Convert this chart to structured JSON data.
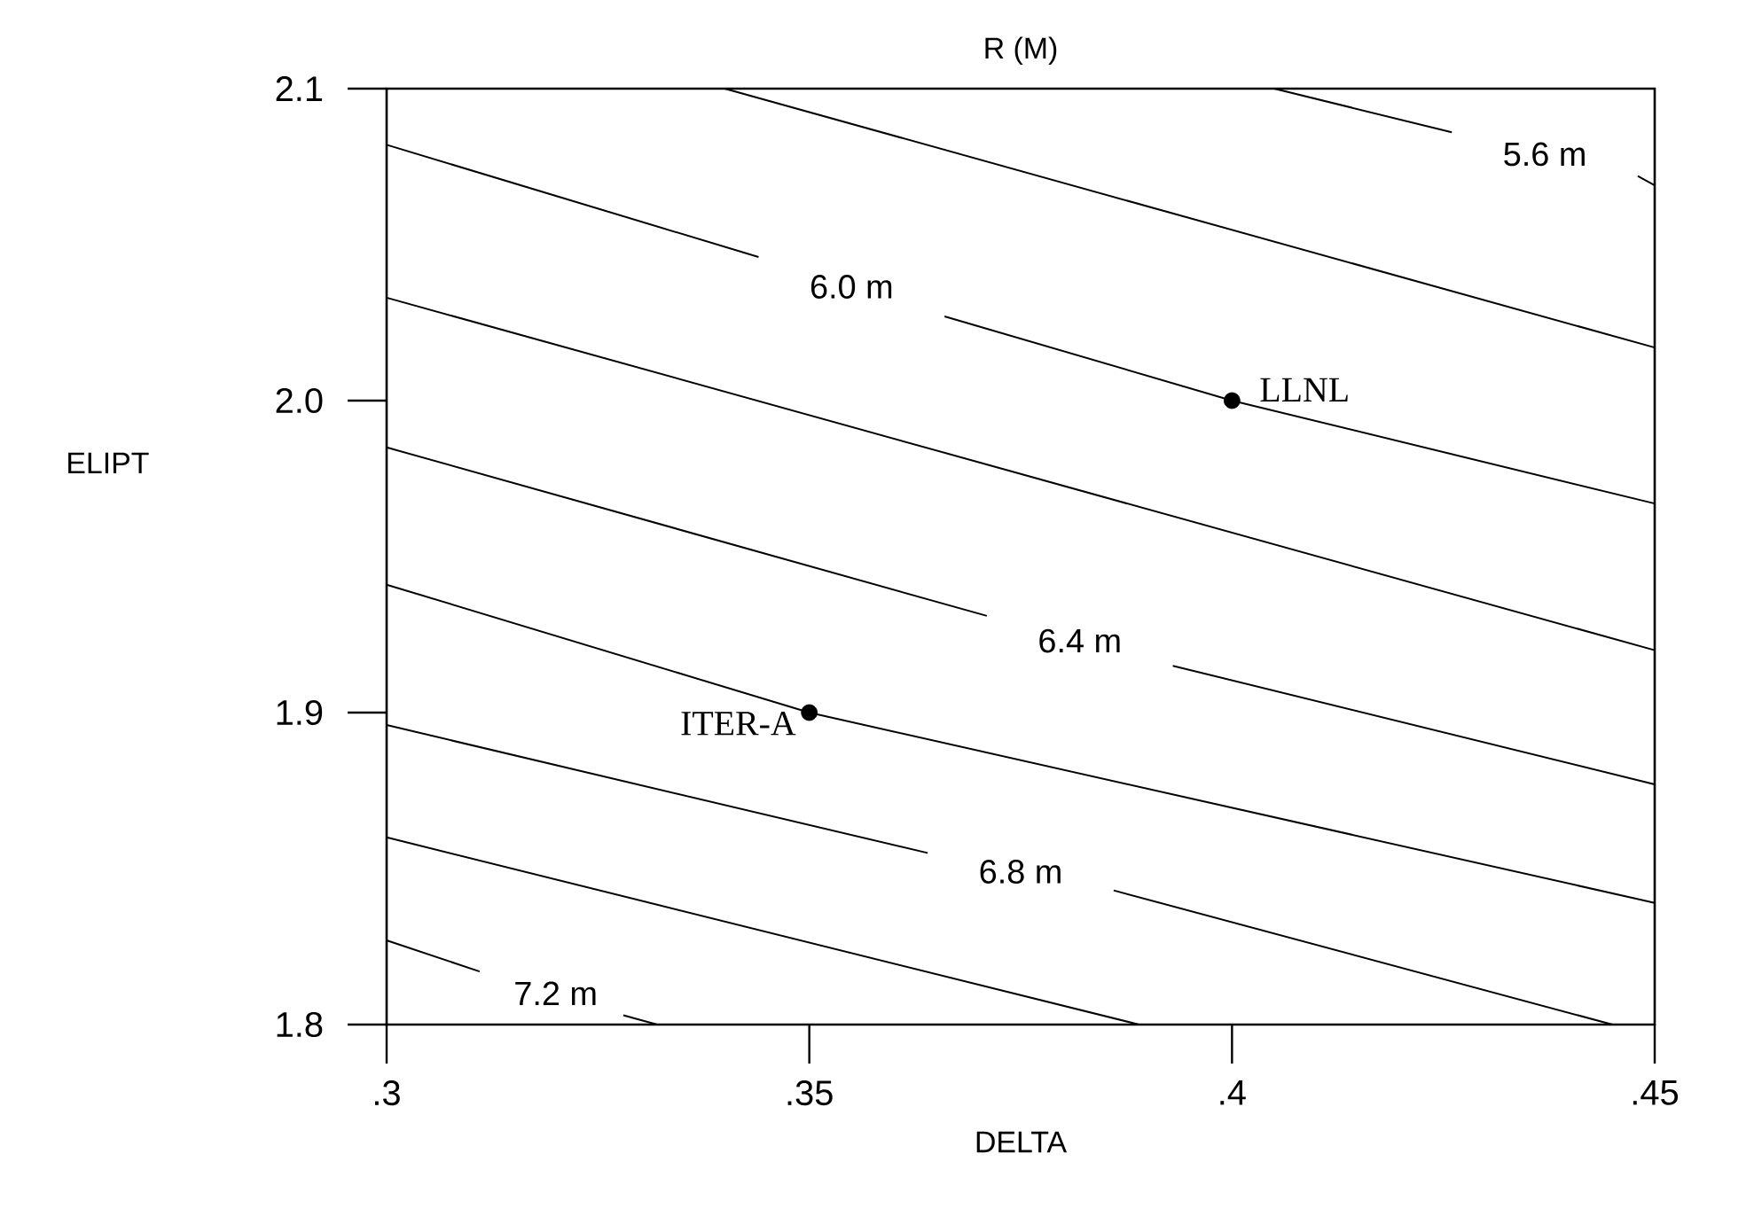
{
  "chart_data": {
    "type": "line",
    "title": "R (M)",
    "xlabel": "DELTA",
    "ylabel": "ELIPT",
    "xlim": [
      0.3,
      0.45
    ],
    "ylim": [
      1.8,
      2.1
    ],
    "xticks": [
      {
        "value": 0.3,
        "label": ".3"
      },
      {
        "value": 0.35,
        "label": ".35"
      },
      {
        "value": 0.4,
        "label": ".4"
      },
      {
        "value": 0.45,
        "label": ".45"
      }
    ],
    "yticks": [
      1.8,
      1.9,
      {
        "value": 2.0,
        "label": "2.0"
      },
      2.1
    ],
    "line_style": "solid",
    "series": [
      {
        "name": "5.6 m",
        "color": "#000000",
        "x": [
          0.405,
          0.426,
          0.437,
          0.448,
          0.45
        ],
        "values": [
          2.1,
          2.086,
          null,
          2.072,
          2.069
        ]
      },
      {
        "color": "#000000",
        "x": [
          0.34,
          0.45
        ],
        "values": [
          2.1,
          2.017
        ]
      },
      {
        "name": "6.0 m",
        "color": "#000000",
        "x": [
          0.3,
          0.344,
          0.355,
          0.366,
          0.4,
          0.45
        ],
        "values": [
          2.082,
          2.046,
          null,
          2.027,
          2.0,
          1.967
        ]
      },
      {
        "color": "#000000",
        "x": [
          0.3,
          0.45
        ],
        "values": [
          2.033,
          1.92
        ]
      },
      {
        "name": "6.4 m",
        "color": "#000000",
        "x": [
          0.3,
          0.371,
          0.382,
          0.393,
          0.45
        ],
        "values": [
          1.985,
          1.931,
          null,
          1.915,
          1.877
        ]
      },
      {
        "color": "#000000",
        "x": [
          0.3,
          0.35,
          0.45
        ],
        "values": [
          1.941,
          1.9,
          1.839
        ]
      },
      {
        "name": "6.8 m",
        "color": "#000000",
        "x": [
          0.3,
          0.364,
          0.375,
          0.386,
          0.445
        ],
        "values": [
          1.896,
          1.855,
          null,
          1.843,
          1.8
        ]
      },
      {
        "color": "#000000",
        "x": [
          0.3,
          0.389
        ],
        "values": [
          1.86,
          1.8
        ]
      },
      {
        "name": "7.2 m",
        "color": "#000000",
        "x": [
          0.3,
          0.311,
          0.32,
          0.328,
          0.332
        ],
        "values": [
          1.827,
          1.817,
          null,
          1.803,
          1.8
        ]
      },
      {
        "type": "scatter",
        "name": "LLNL",
        "color": "#000000",
        "x": [
          0.4
        ],
        "values": [
          2.0
        ]
      },
      {
        "type": "scatter",
        "name": "ITER-A",
        "color": "#000000",
        "x": [
          0.35
        ],
        "values": [
          1.9
        ]
      }
    ]
  }
}
